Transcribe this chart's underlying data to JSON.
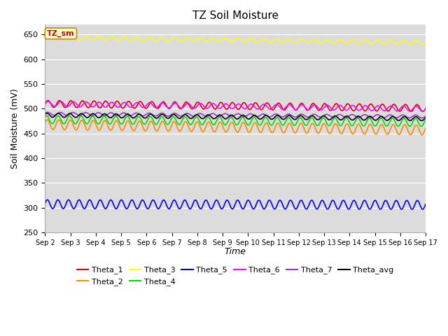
{
  "title": "TZ Soil Moisture",
  "xlabel": "Time",
  "ylabel": "Soil Moisture (mV)",
  "ylim": [
    250,
    670
  ],
  "yticks": [
    250,
    300,
    350,
    400,
    450,
    500,
    550,
    600,
    650
  ],
  "background_color": "#dcdcdc",
  "annotation_text": "TZ_sm",
  "annotation_color": "#cc0000",
  "annotation_bg": "#ffffcc",
  "series": [
    {
      "name": "Theta_1",
      "color": "#dd0000",
      "base": 510,
      "amp": 7,
      "freq": 2.2,
      "trend": -0.012,
      "phase": 0.0
    },
    {
      "name": "Theta_2",
      "color": "#ff8800",
      "base": 468,
      "amp": 10,
      "freq": 2.2,
      "trend": -0.015,
      "phase": 0.4
    },
    {
      "name": "Theta_3",
      "color": "#ffff00",
      "base": 644,
      "amp": 4,
      "freq": 2.0,
      "trend": -0.014,
      "phase": 0.1
    },
    {
      "name": "Theta_4",
      "color": "#00dd00",
      "base": 478,
      "amp": 8,
      "freq": 2.2,
      "trend": -0.008,
      "phase": 0.8
    },
    {
      "name": "Theta_5",
      "color": "#0000ee",
      "base": 307,
      "amp": 9,
      "freq": 2.4,
      "trend": -0.002,
      "phase": 0.2
    },
    {
      "name": "Theta_6",
      "color": "#ff00ff",
      "base": 510,
      "amp": 5,
      "freq": 2.0,
      "trend": -0.014,
      "phase": 0.0
    },
    {
      "name": "Theta_7",
      "color": "#9933cc",
      "base": 490,
      "amp": 3,
      "freq": 2.0,
      "trend": -0.008,
      "phase": 0.3
    },
    {
      "name": "Theta_avg",
      "color": "#000000",
      "base": 487,
      "amp": 4,
      "freq": 2.2,
      "trend": -0.01,
      "phase": 0.6
    }
  ],
  "n_points": 720,
  "x_start": 0,
  "x_end": 15,
  "xtick_labels": [
    "Sep 2",
    "Sep 3",
    "Sep 4",
    "Sep 5",
    "Sep 6",
    "Sep 7",
    "Sep 8",
    "Sep 9",
    "Sep 10",
    "Sep 11",
    "Sep 12",
    "Sep 13",
    "Sep 14",
    "Sep 15",
    "Sep 16",
    "Sep 17"
  ],
  "xtick_positions": [
    0,
    1,
    2,
    3,
    4,
    5,
    6,
    7,
    8,
    9,
    10,
    11,
    12,
    13,
    14,
    15
  ]
}
